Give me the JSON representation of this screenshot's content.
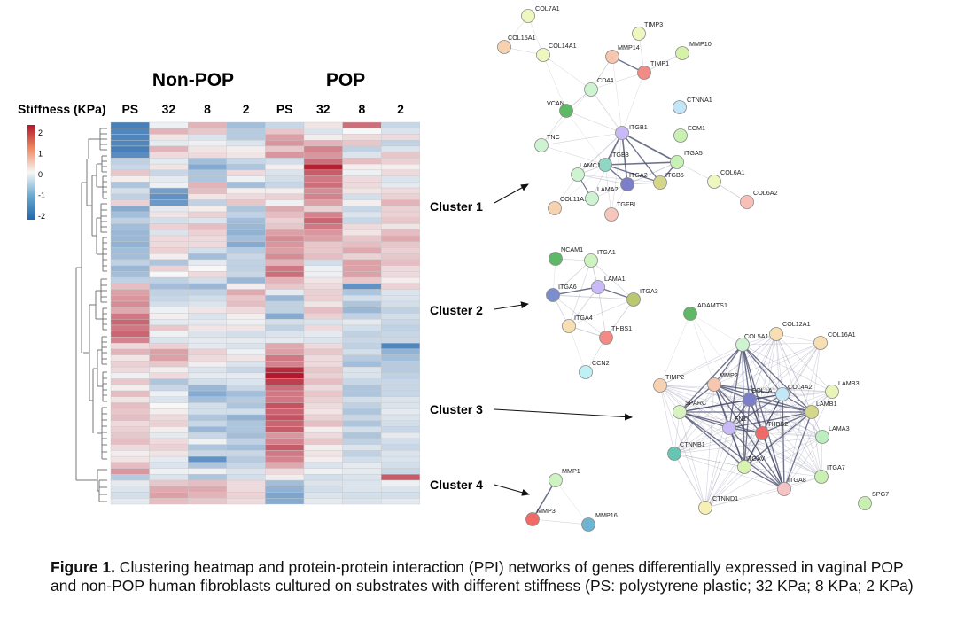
{
  "heatmap": {
    "group_labels": [
      "Non-POP",
      "POP"
    ],
    "stiffness_label": "Stiffness (KPa)",
    "columns": [
      "PS",
      "32",
      "8",
      "2",
      "PS",
      "32",
      "8",
      "2"
    ],
    "colorbar_ticks": [
      "2",
      "1",
      "0",
      "-1",
      "-2"
    ],
    "colors": {
      "high": "#b2182b",
      "mid": "#f7f7f7",
      "low": "#2166ac"
    },
    "values": [
      [
        -1.9,
        -0.1,
        0.7,
        -0.9,
        -0.5,
        0.2,
        1.4,
        -0.5
      ],
      [
        -1.8,
        0.7,
        0.5,
        -0.7,
        0.5,
        -0.3,
        0.0,
        -0.3
      ],
      [
        -1.8,
        0.2,
        -0.3,
        -0.7,
        0.9,
        0.1,
        0.3,
        0.3
      ],
      [
        -1.8,
        -0.2,
        -0.1,
        -0.3,
        1.0,
        0.7,
        0.5,
        -0.6
      ],
      [
        -1.9,
        0.7,
        0.2,
        0.1,
        0.5,
        1.2,
        -0.6,
        -0.3
      ],
      [
        -1.7,
        0.3,
        0.3,
        0.2,
        1.0,
        1.0,
        -0.3,
        0.5
      ],
      [
        -0.6,
        -0.2,
        -0.9,
        -0.5,
        -0.4,
        1.4,
        0.6,
        0.4
      ],
      [
        -0.5,
        0.2,
        -1.2,
        -0.8,
        0.1,
        2.2,
        0.1,
        0.1
      ],
      [
        0.5,
        -0.5,
        -0.8,
        0.3,
        -0.3,
        1.6,
        -0.1,
        0.3
      ],
      [
        0.1,
        -0.2,
        -0.8,
        -0.1,
        -0.4,
        1.3,
        0.3,
        -0.3
      ],
      [
        -0.8,
        -0.1,
        0.7,
        -0.9,
        -0.5,
        1.4,
        0.3,
        -0.2
      ],
      [
        -0.4,
        -1.4,
        0.6,
        0.1,
        0.1,
        1.1,
        0.2,
        0.3
      ],
      [
        -0.6,
        -1.6,
        0.2,
        0.3,
        0.4,
        1.2,
        -0.4,
        0.4
      ],
      [
        0.4,
        -1.5,
        -0.6,
        0.5,
        -0.1,
        0.9,
        0.1,
        0.7
      ],
      [
        -1.2,
        -0.2,
        0.1,
        -0.8,
        0.8,
        0.4,
        -0.5,
        0.4
      ],
      [
        -0.9,
        0.2,
        0.4,
        -0.6,
        0.6,
        1.2,
        -0.3,
        0.4
      ],
      [
        -0.6,
        -0.4,
        -0.3,
        -0.9,
        0.4,
        1.5,
        -0.5,
        0.5
      ],
      [
        -0.9,
        0.4,
        0.6,
        -1.0,
        0.5,
        1.3,
        0.3,
        0.2
      ],
      [
        -1.0,
        -0.3,
        0.4,
        -1.1,
        0.9,
        1.0,
        0.2,
        0.6
      ],
      [
        -1.0,
        0.3,
        0.3,
        -0.9,
        1.1,
        0.9,
        0.5,
        0.8
      ],
      [
        -1.1,
        0.3,
        0.3,
        -1.2,
        1.0,
        0.5,
        0.6,
        0.5
      ],
      [
        -0.9,
        0.4,
        -0.4,
        -0.7,
        0.9,
        0.5,
        0.8,
        0.4
      ],
      [
        -0.9,
        0.1,
        -0.9,
        -0.5,
        1.1,
        0.6,
        0.4,
        0.5
      ],
      [
        -0.6,
        -0.8,
        -0.2,
        -0.6,
        0.7,
        -0.4,
        0.9,
        0.6
      ],
      [
        -1.0,
        0.4,
        0.0,
        -0.6,
        1.3,
        -0.1,
        0.9,
        0.3
      ],
      [
        -0.9,
        0.0,
        0.3,
        -0.5,
        1.4,
        -0.1,
        0.9,
        0.3
      ],
      [
        -0.6,
        -0.6,
        -0.4,
        -1.0,
        0.7,
        0.2,
        0.5,
        0.1
      ],
      [
        0.6,
        -0.9,
        -1.0,
        0.1,
        0.5,
        0.3,
        -1.6,
        0.4
      ],
      [
        0.9,
        -0.6,
        -0.6,
        0.8,
        -0.2,
        0.4,
        -0.8,
        -0.3
      ],
      [
        1.0,
        -0.5,
        -0.4,
        0.5,
        -1.0,
        0.4,
        -0.4,
        -0.3
      ],
      [
        1.1,
        -0.4,
        -0.3,
        0.6,
        -0.6,
        0.2,
        -0.8,
        -0.4
      ],
      [
        0.8,
        -0.1,
        0.2,
        0.3,
        -0.6,
        0.6,
        -1.0,
        -0.6
      ],
      [
        1.3,
        0.1,
        -0.3,
        0.1,
        -1.2,
        0.4,
        -0.6,
        -0.4
      ],
      [
        1.5,
        -0.2,
        -0.2,
        -0.1,
        -0.4,
        -0.3,
        -0.2,
        -0.5
      ],
      [
        1.3,
        0.5,
        0.2,
        0.2,
        -0.6,
        0.3,
        -0.4,
        -0.6
      ],
      [
        1.5,
        -0.1,
        -0.3,
        -0.4,
        -0.3,
        -0.2,
        -0.6,
        -0.5
      ],
      [
        1.2,
        -0.3,
        -0.2,
        -0.2,
        -0.2,
        -0.3,
        -0.5,
        -0.5
      ],
      [
        0.3,
        0.4,
        -0.2,
        -0.3,
        0.8,
        0.3,
        -0.6,
        -1.8
      ],
      [
        0.7,
        0.9,
        0.4,
        -0.1,
        0.9,
        0.5,
        -0.4,
        -1.1
      ],
      [
        0.2,
        0.9,
        0.3,
        0.2,
        1.3,
        0.3,
        -0.7,
        -0.9
      ],
      [
        0.4,
        0.5,
        0.1,
        -0.3,
        1.2,
        0.3,
        -0.9,
        -0.7
      ],
      [
        0.3,
        0.1,
        -0.3,
        -0.5,
        2.1,
        0.5,
        -0.3,
        -0.7
      ],
      [
        -0.1,
        0.3,
        -0.2,
        -0.2,
        2.3,
        0.4,
        -0.3,
        -0.6
      ],
      [
        0.5,
        -0.8,
        -0.4,
        -0.3,
        1.9,
        0.6,
        -0.5,
        -0.5
      ],
      [
        0.1,
        -0.5,
        -1.0,
        -0.5,
        1.4,
        0.3,
        -0.8,
        -0.5
      ],
      [
        0.6,
        -0.1,
        -1.2,
        -0.9,
        1.3,
        0.5,
        -0.8,
        -0.5
      ],
      [
        0.2,
        -0.3,
        -0.9,
        -0.7,
        1.3,
        0.4,
        -0.4,
        -0.3
      ],
      [
        0.6,
        0.0,
        -0.4,
        -0.8,
        1.7,
        0.3,
        -0.6,
        -0.3
      ],
      [
        0.5,
        0.1,
        -0.4,
        -0.4,
        1.5,
        0.2,
        -0.8,
        -0.2
      ],
      [
        0.6,
        0.3,
        -0.8,
        -1.1,
        1.7,
        0.4,
        -0.5,
        -0.3
      ],
      [
        0.3,
        0.4,
        -0.5,
        -0.8,
        1.5,
        0.6,
        -0.8,
        -0.4
      ],
      [
        0.4,
        0.1,
        -1.0,
        -0.8,
        1.6,
        0.1,
        -0.4,
        -0.5
      ],
      [
        0.5,
        -0.2,
        -0.5,
        -0.9,
        1.0,
        0.3,
        -0.8,
        -0.2
      ],
      [
        0.6,
        0.3,
        -0.1,
        -0.6,
        1.2,
        0.5,
        -0.6,
        -0.4
      ],
      [
        0.3,
        0.4,
        -0.8,
        -0.9,
        1.6,
        0.1,
        -0.3,
        -0.5
      ],
      [
        0.1,
        0.2,
        -0.5,
        -0.5,
        1.3,
        0.2,
        -0.6,
        -0.3
      ],
      [
        0.2,
        -0.2,
        -1.6,
        -0.7,
        1.2,
        0.1,
        -0.4,
        -0.3
      ],
      [
        0.6,
        -0.3,
        -0.8,
        -0.5,
        0.8,
        -0.3,
        -0.2,
        -0.4
      ],
      [
        1.0,
        -0.1,
        -0.1,
        -0.3,
        0.3,
        -0.1,
        -0.2,
        -0.5
      ],
      [
        -0.7,
        -0.3,
        -0.8,
        -0.4,
        0.1,
        -0.4,
        -0.3,
        1.6
      ],
      [
        -0.2,
        0.5,
        0.6,
        0.3,
        -0.9,
        -0.3,
        -0.3,
        -0.1
      ],
      [
        -0.3,
        0.8,
        0.8,
        0.3,
        -1.1,
        -0.4,
        -0.3,
        -0.3
      ],
      [
        -0.4,
        0.9,
        0.7,
        0.4,
        -1.3,
        -0.3,
        -0.4,
        -0.4
      ],
      [
        -0.2,
        0.6,
        0.5,
        0.3,
        -1.2,
        -0.2,
        -0.3,
        -0.2
      ]
    ]
  },
  "clusters": [
    {
      "label": "Cluster 1",
      "nodes": [
        "COL7A1",
        "COL15A1",
        "COL14A1",
        "TIMP3",
        "MMP14",
        "MMP10",
        "TIMP1",
        "CD44",
        "VCAN",
        "CTNNA1",
        "ITGB1",
        "ECM1",
        "TNC",
        "ITGB3",
        "ITGA5",
        "LAMC1",
        "ITGA2",
        "ITGB5",
        "COL6A1",
        "COL11A1",
        "LAMA2",
        "TGFBI",
        "COL6A2"
      ]
    },
    {
      "label": "Cluster 2",
      "nodes": [
        "NCAM1",
        "ITGA1",
        "LAMA1",
        "ITGA6",
        "ITGA3",
        "ITGA4",
        "THBS1",
        "CCN2"
      ]
    },
    {
      "label": "Cluster 3",
      "nodes": [
        "ADAMTS1",
        "COL12A1",
        "COL16A1",
        "COL5A1",
        "TIMP2",
        "MMP2",
        "COL1A1",
        "COL4A2",
        "LAMB3",
        "LAMB1",
        "SPARC",
        "FN1",
        "THBS2",
        "LAMA3",
        "CTNNB1",
        "ITGAV",
        "ITGA7",
        "ITGA8",
        "CTNND1",
        "SPG7"
      ]
    },
    {
      "label": "Cluster 4",
      "nodes": [
        "MMP1",
        "MMP3",
        "MMP16"
      ]
    }
  ],
  "caption": {
    "label": "Figure 1.",
    "text": " Clustering heatmap and protein-protein interaction (PPI) networks of genes differentially expressed in vaginal POP and non-POP human fibroblasts cultured on substrates with different stiffness (PS: polystyrene plastic; 32 KPa; 8 KPa; 2 KPa)"
  }
}
